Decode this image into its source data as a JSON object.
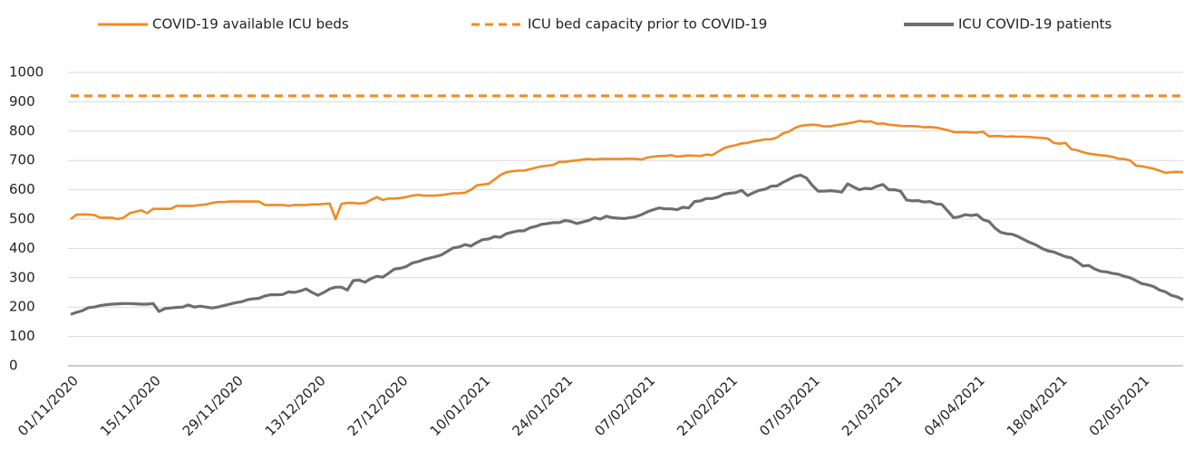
{
  "chart_data": {
    "type": "line",
    "categories": [
      "01/11/2020",
      null,
      null,
      null,
      null,
      null,
      null,
      null,
      null,
      null,
      null,
      null,
      null,
      null,
      "15/11/2020",
      null,
      null,
      null,
      null,
      null,
      null,
      null,
      null,
      null,
      null,
      null,
      null,
      null,
      "29/11/2020",
      null,
      null,
      null,
      null,
      null,
      null,
      null,
      null,
      null,
      null,
      null,
      null,
      null,
      "13/12/2020",
      null,
      null,
      null,
      null,
      null,
      null,
      null,
      null,
      null,
      null,
      null,
      null,
      null,
      "27/12/2020",
      null,
      null,
      null,
      null,
      null,
      null,
      null,
      null,
      null,
      null,
      null,
      null,
      null,
      "10/01/2021",
      null,
      null,
      null,
      null,
      null,
      null,
      null,
      null,
      null,
      null,
      null,
      null,
      null,
      "24/01/2021",
      null,
      null,
      null,
      null,
      null,
      null,
      null,
      null,
      null,
      null,
      null,
      null,
      null,
      "07/02/2021",
      null,
      null,
      null,
      null,
      null,
      null,
      null,
      null,
      null,
      null,
      null,
      null,
      null,
      "21/02/2021",
      null,
      null,
      null,
      null,
      null,
      null,
      null,
      null,
      null,
      null,
      null,
      null,
      null,
      "07/03/2021",
      null,
      null,
      null,
      null,
      null,
      null,
      null,
      null,
      null,
      null,
      null,
      null,
      null,
      "21/03/2021",
      null,
      null,
      null,
      null,
      null,
      null,
      null,
      null,
      null,
      null,
      null,
      null,
      null,
      "04/04/2021",
      null,
      null,
      null,
      null,
      null,
      null,
      null,
      null,
      null,
      null,
      null,
      null,
      null,
      "18/04/2021",
      null,
      null,
      null,
      null,
      null,
      null,
      null,
      null,
      null,
      null,
      null,
      null,
      null,
      "02/05/2021",
      null,
      null,
      null,
      null,
      null,
      null,
      null
    ],
    "series": [
      {
        "name": "COVID-19 available ICU beds",
        "color": "#f08a24",
        "values": [
          500,
          515,
          516,
          515,
          514,
          505,
          505,
          505,
          500,
          505,
          520,
          525,
          530,
          520,
          535,
          535,
          535,
          535,
          545,
          545,
          545,
          545,
          548,
          550,
          555,
          558,
          558,
          560,
          560,
          560,
          560,
          560,
          560,
          548,
          548,
          548,
          548,
          545,
          548,
          548,
          548,
          550,
          550,
          552,
          553,
          500,
          552,
          555,
          555,
          553,
          555,
          565,
          575,
          565,
          570,
          570,
          572,
          575,
          580,
          583,
          580,
          580,
          580,
          582,
          585,
          588,
          588,
          590,
          600,
          615,
          618,
          620,
          635,
          650,
          660,
          663,
          665,
          665,
          670,
          675,
          680,
          682,
          685,
          695,
          695,
          698,
          700,
          703,
          705,
          703,
          705,
          705,
          705,
          705,
          705,
          706,
          705,
          703,
          710,
          713,
          715,
          715,
          718,
          713,
          715,
          717,
          716,
          715,
          720,
          718,
          730,
          742,
          748,
          752,
          758,
          760,
          765,
          768,
          772,
          772,
          778,
          792,
          798,
          810,
          818,
          820,
          822,
          820,
          816,
          816,
          820,
          823,
          826,
          830,
          835,
          832,
          833,
          825,
          826,
          822,
          820,
          818,
          817,
          817,
          816,
          813,
          814,
          812,
          808,
          803,
          797,
          796,
          797,
          795,
          795,
          798,
          782,
          783,
          783,
          781,
          782,
          781,
          781,
          780,
          778,
          777,
          775,
          760,
          757,
          760,
          738,
          735,
          728,
          723,
          720,
          718,
          716,
          712,
          706,
          705,
          700,
          682,
          680,
          676,
          672,
          665,
          658,
          660,
          661,
          660
        ]
      },
      {
        "name": "ICU bed capacity prior to COVID-19",
        "color": "#f08a24",
        "dashed": true,
        "value": 920
      },
      {
        "name": "ICU COVID-19 patients",
        "color": "#6d6e71",
        "values": [
          175,
          182,
          188,
          198,
          200,
          205,
          208,
          210,
          211,
          212,
          212,
          211,
          210,
          210,
          212,
          185,
          195,
          197,
          199,
          200,
          207,
          200,
          203,
          200,
          197,
          200,
          205,
          210,
          215,
          218,
          225,
          228,
          230,
          238,
          242,
          242,
          243,
          252,
          250,
          255,
          262,
          250,
          240,
          250,
          262,
          268,
          268,
          258,
          290,
          292,
          285,
          297,
          305,
          302,
          315,
          330,
          332,
          338,
          350,
          355,
          362,
          367,
          372,
          378,
          390,
          402,
          405,
          413,
          408,
          420,
          430,
          432,
          440,
          438,
          450,
          455,
          460,
          460,
          470,
          475,
          482,
          485,
          488,
          488,
          495,
          492,
          485,
          490,
          495,
          505,
          500,
          510,
          505,
          503,
          502,
          505,
          508,
          515,
          525,
          532,
          538,
          535,
          535,
          532,
          540,
          538,
          560,
          562,
          570,
          570,
          575,
          585,
          588,
          590,
          598,
          580,
          590,
          598,
          602,
          612,
          613,
          625,
          635,
          645,
          650,
          640,
          615,
          595,
          595,
          597,
          595,
          592,
          620,
          610,
          600,
          605,
          603,
          612,
          618,
          600,
          600,
          595,
          565,
          562,
          563,
          558,
          560,
          552,
          550,
          528,
          505,
          508,
          515,
          512,
          515,
          498,
          492,
          470,
          455,
          450,
          448,
          440,
          430,
          420,
          412,
          400,
          392,
          388,
          380,
          372,
          368,
          355,
          340,
          342,
          330,
          322,
          320,
          315,
          312,
          305,
          300,
          290,
          280,
          276,
          270,
          258,
          252,
          240,
          235,
          225
        ]
      }
    ],
    "ylim": [
      0,
      1000
    ],
    "yticks": [
      0,
      100,
      200,
      300,
      400,
      500,
      600,
      700,
      800,
      900,
      1000
    ],
    "grid": true,
    "legend": "top"
  }
}
